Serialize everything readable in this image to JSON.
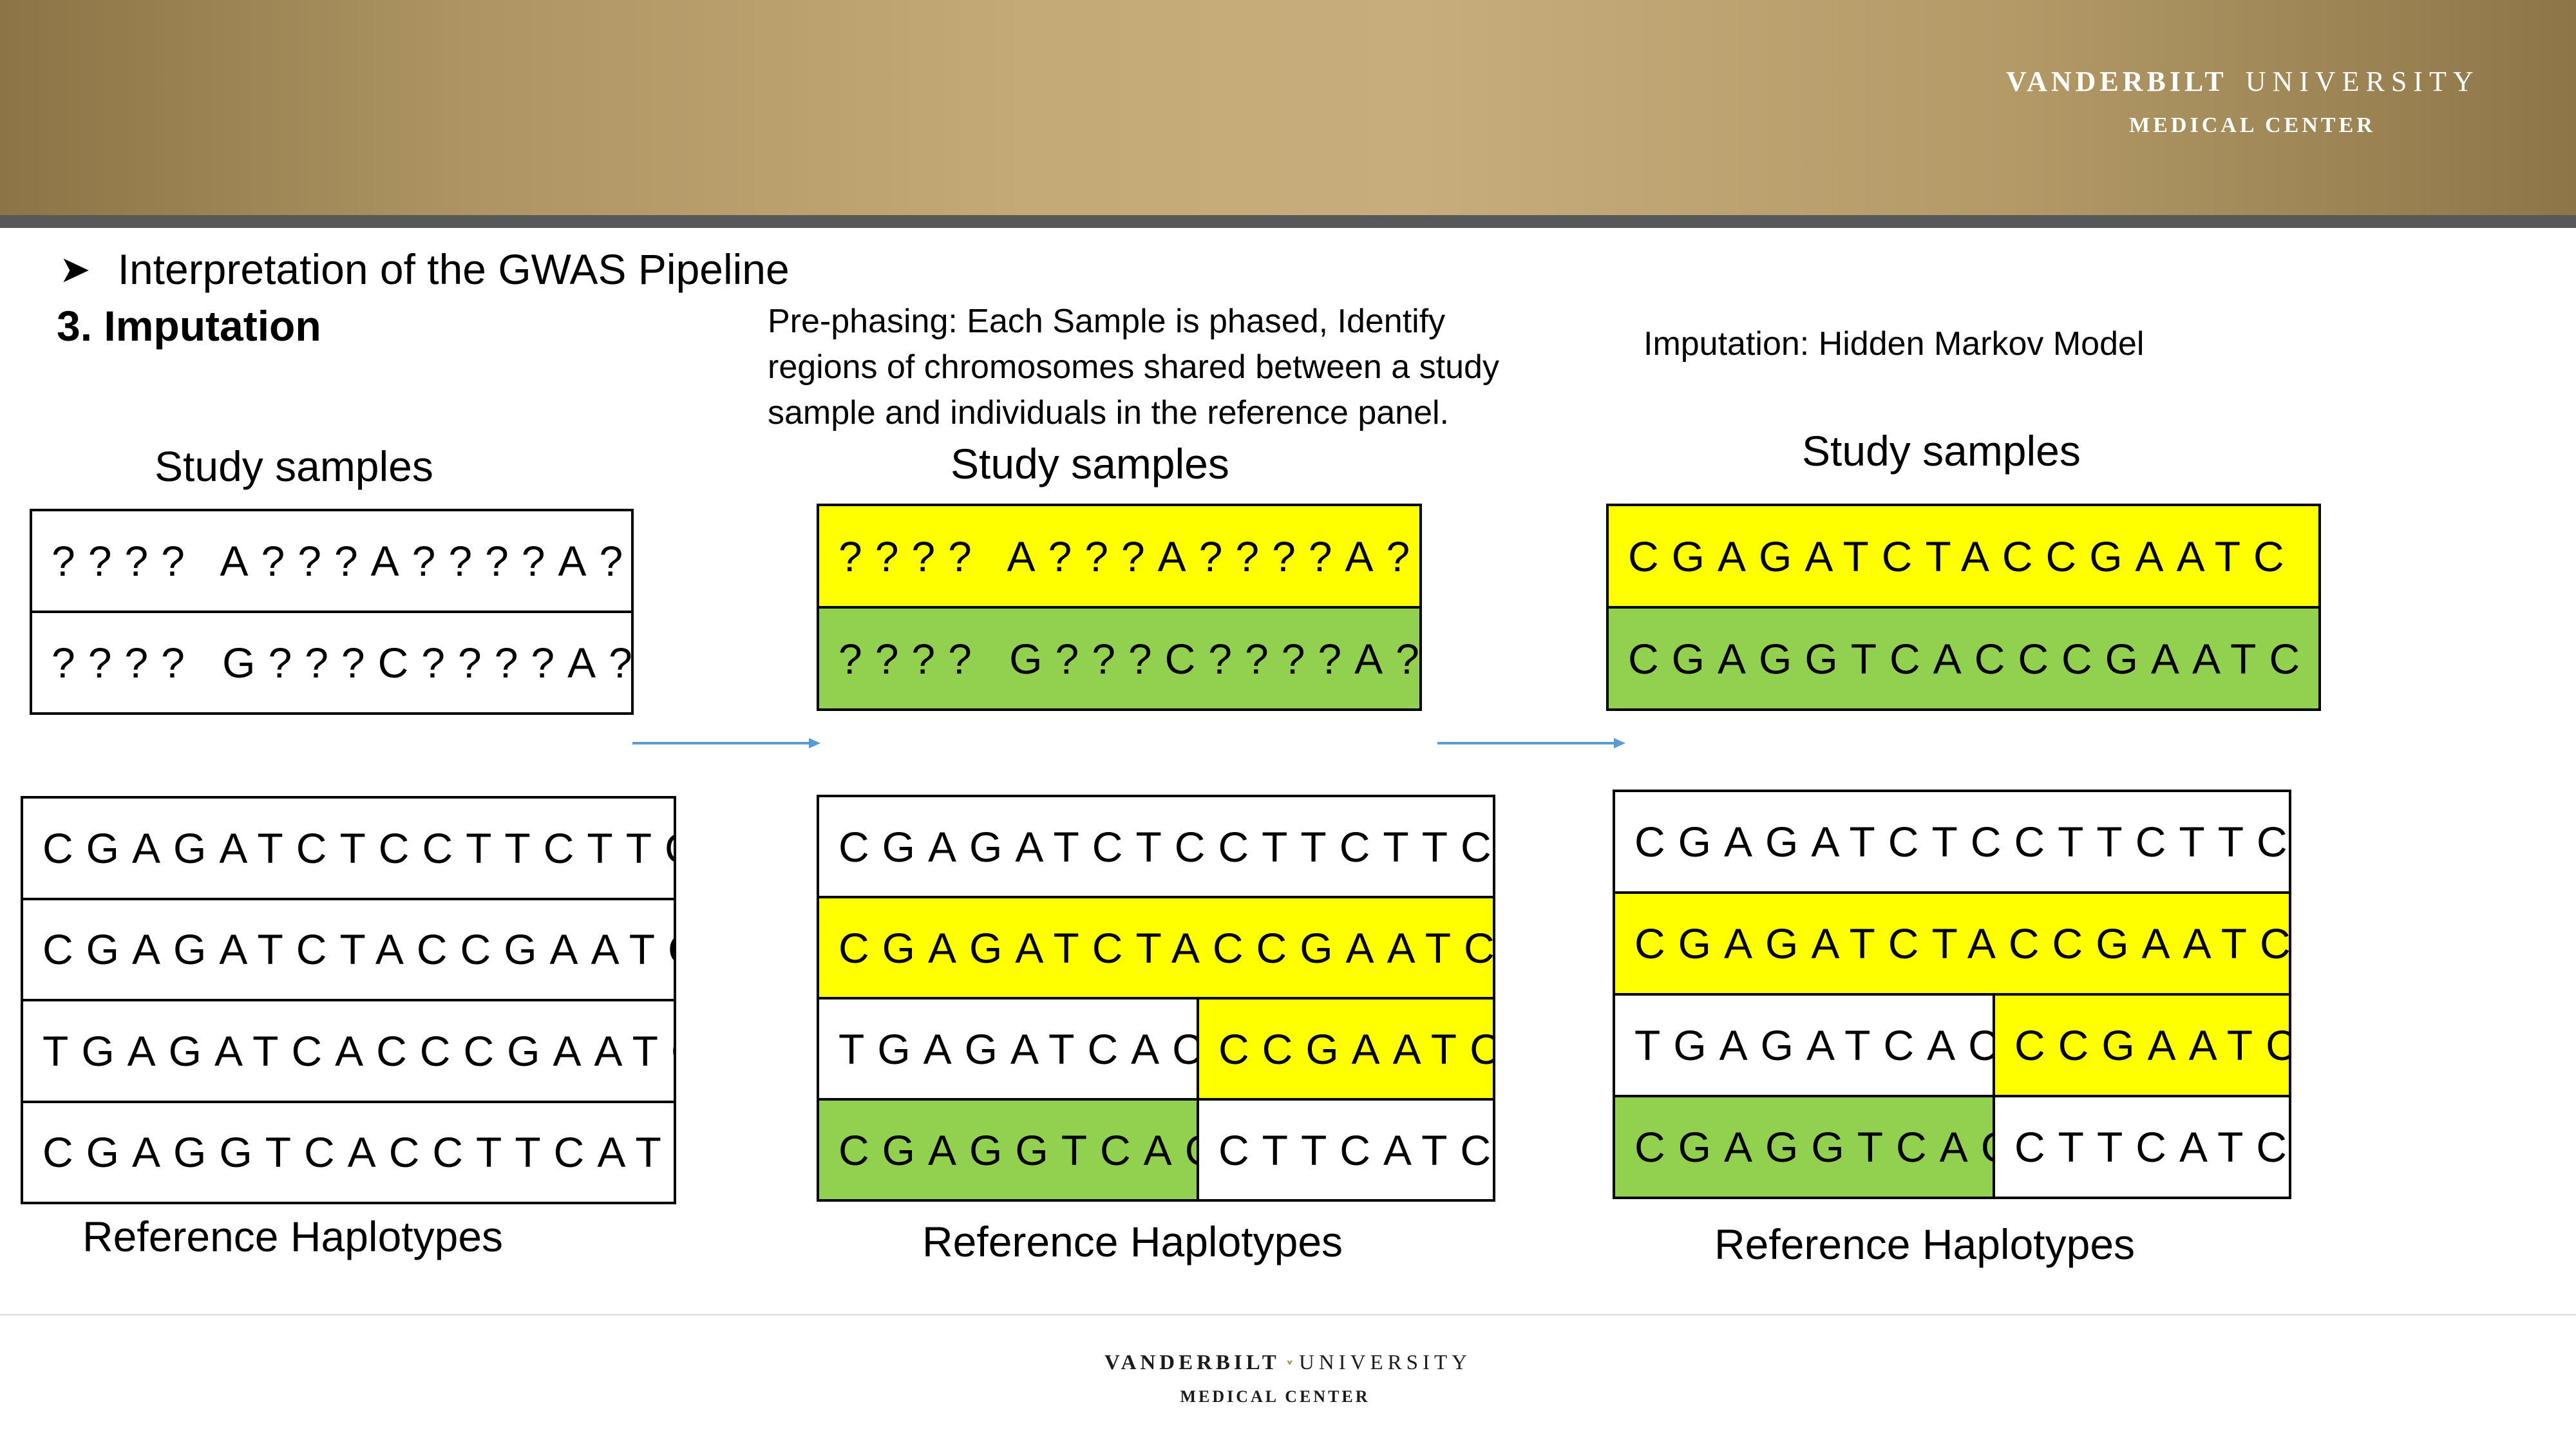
{
  "header": {
    "logo": {
      "word1": "VANDERBILT",
      "word2": "UNIVERSITY",
      "line2": "MEDICAL CENTER"
    }
  },
  "slide": {
    "bullet": "Interpretation of the GWAS Pipeline",
    "section": "3. Imputation",
    "prephasing_text": "Pre-phasing: Each Sample is phased, Identify regions of chromosomes shared between a study sample and individuals in the reference panel.",
    "imputation_text": "Imputation: Hidden Markov Model"
  },
  "panels": [
    {
      "study_label": "Study samples",
      "reference_label": "Reference Haplotypes",
      "study_rows": [
        {
          "segments": [
            {
              "text": "???? A???A????A??",
              "color": "#ffffff"
            }
          ]
        },
        {
          "segments": [
            {
              "text": "???? G???C????A??",
              "color": "#ffffff"
            }
          ]
        }
      ],
      "reference_rows": [
        {
          "segments": [
            {
              "text": "CGAGATCTCCTTCTTC",
              "color": "#ffffff"
            }
          ]
        },
        {
          "segments": [
            {
              "text": "CGAGATCTACCGAATC",
              "color": "#ffffff"
            }
          ]
        },
        {
          "segments": [
            {
              "text": "TGAGATCACCCGAATC",
              "color": "#ffffff"
            }
          ]
        },
        {
          "segments": [
            {
              "text": "CGAGGTCACCTTCATC",
              "color": "#ffffff"
            }
          ]
        }
      ]
    },
    {
      "study_label": "Study samples",
      "reference_label": "Reference Haplotypes",
      "study_rows": [
        {
          "segments": [
            {
              "text": "???? A???A????A??",
              "color": "#ffff00"
            }
          ]
        },
        {
          "segments": [
            {
              "text": "???? G???C????A??",
              "color": "#92d050"
            }
          ]
        }
      ],
      "reference_rows": [
        {
          "segments": [
            {
              "text": "CGAGATCTCCTTCTTC",
              "color": "#ffffff"
            }
          ]
        },
        {
          "segments": [
            {
              "text": "CGAGATCTACCGAATC",
              "color": "#ffff00"
            }
          ]
        },
        {
          "segments": [
            {
              "text": "TGAGATCAC",
              "color": "#ffffff"
            },
            {
              "text": "CCGAATC",
              "color": "#ffff00"
            }
          ]
        },
        {
          "segments": [
            {
              "text": "CGAGGTCAC",
              "color": "#92d050"
            },
            {
              "text": "CTTCATC",
              "color": "#ffffff"
            }
          ]
        }
      ]
    },
    {
      "study_label": "Study samples",
      "reference_label": "Reference Haplotypes",
      "study_rows": [
        {
          "segments": [
            {
              "text": "CGAGATCTACCGAATC",
              "color": "#ffff00"
            }
          ]
        },
        {
          "segments": [
            {
              "text": "CGAGGTCACCCGAATC",
              "color": "#92d050"
            }
          ]
        }
      ],
      "reference_rows": [
        {
          "segments": [
            {
              "text": "CGAGATCTCCTTCTTC",
              "color": "#ffffff"
            }
          ]
        },
        {
          "segments": [
            {
              "text": "CGAGATCTACCGAATC",
              "color": "#ffff00"
            }
          ]
        },
        {
          "segments": [
            {
              "text": "TGAGATCAC",
              "color": "#ffffff"
            },
            {
              "text": "CCGAATC",
              "color": "#ffff00"
            }
          ]
        },
        {
          "segments": [
            {
              "text": "CGAGGTCAC",
              "color": "#92d050"
            },
            {
              "text": "CTTCATC",
              "color": "#ffffff"
            }
          ]
        }
      ]
    }
  ],
  "footer": {
    "logo": {
      "word1": "VANDERBILT",
      "word2": "UNIVERSITY",
      "line2": "MEDICAL CENTER"
    }
  },
  "colors": {
    "accent_yellow": "#ffff00",
    "accent_green": "#92d050",
    "arrow": "#5b9bd5",
    "banner_gold": "#c4aa76"
  }
}
